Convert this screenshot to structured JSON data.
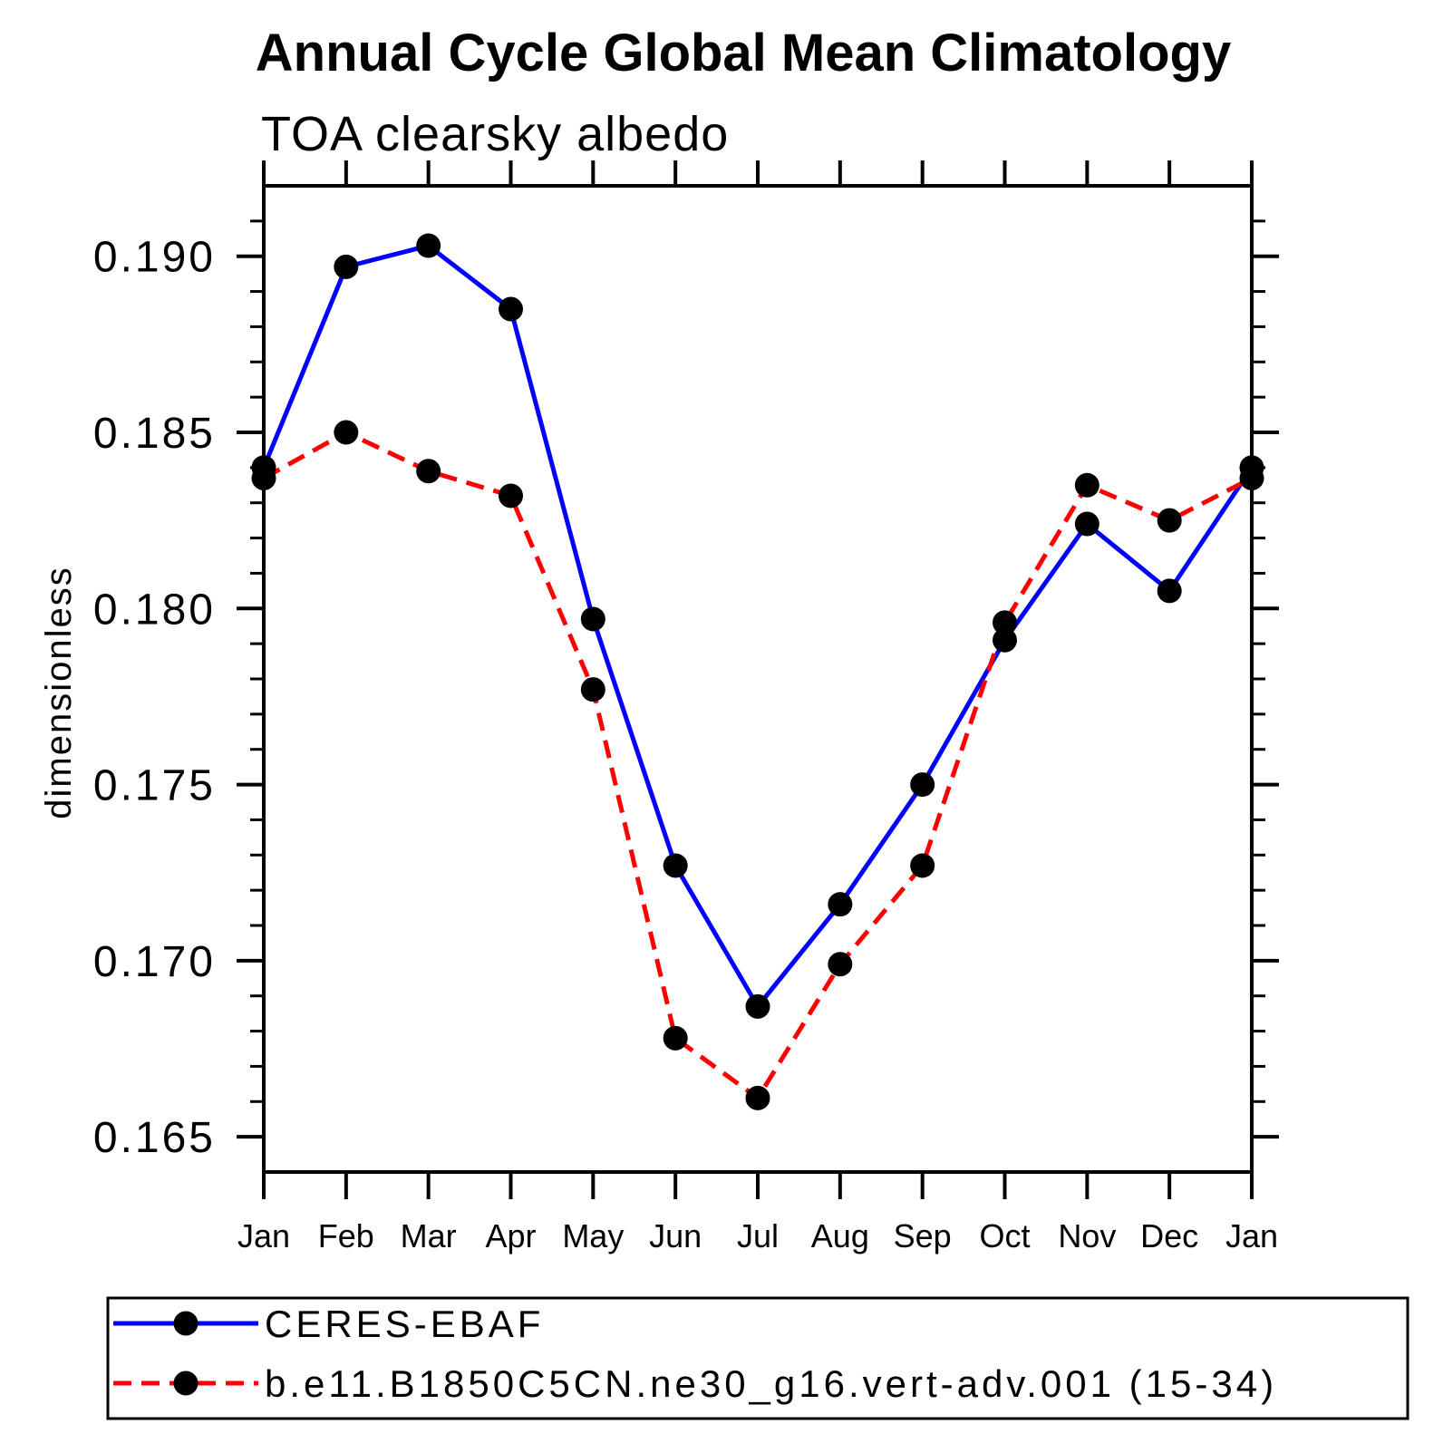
{
  "chart_data": {
    "type": "line",
    "title": "Annual Cycle Global Mean Climatology",
    "subtitle": "TOA clearsky albedo",
    "ylabel": "dimensionless",
    "xlabel": "",
    "x_tick_labels": [
      "Jan",
      "Feb",
      "Mar",
      "Apr",
      "May",
      "Jun",
      "Jul",
      "Aug",
      "Sep",
      "Oct",
      "Nov",
      "Dec",
      "Jan"
    ],
    "y_ticks": [
      0.19,
      0.185,
      0.18,
      0.175,
      0.17,
      0.165
    ],
    "y_tick_labels": [
      "0.190",
      "0.185",
      "0.180",
      "0.175",
      "0.170",
      "0.165"
    ],
    "ylim": [
      0.164,
      0.192
    ],
    "y_minor_step": 0.001,
    "grid": false,
    "legend_position": "bottom",
    "frame_color": "#000000",
    "marker_color": "#000000",
    "series": [
      {
        "name": "CERES-EBAF",
        "color": "#0000ff",
        "style": "solid",
        "marker": "circle",
        "values": [
          0.184,
          0.1897,
          0.1903,
          0.1885,
          0.1797,
          0.1727,
          0.1687,
          0.1716,
          0.175,
          0.1791,
          0.1824,
          0.1805,
          0.184
        ]
      },
      {
        "name": "b.e11.B1850C5CN.ne30_g16.vert-adv.001 (15-34)",
        "color": "#ff0000",
        "style": "dashed",
        "marker": "circle",
        "values": [
          0.1837,
          0.185,
          0.1839,
          0.1832,
          0.1777,
          0.1678,
          0.1661,
          0.1699,
          0.1727,
          0.1796,
          0.1835,
          0.1825,
          0.1837
        ]
      }
    ]
  }
}
